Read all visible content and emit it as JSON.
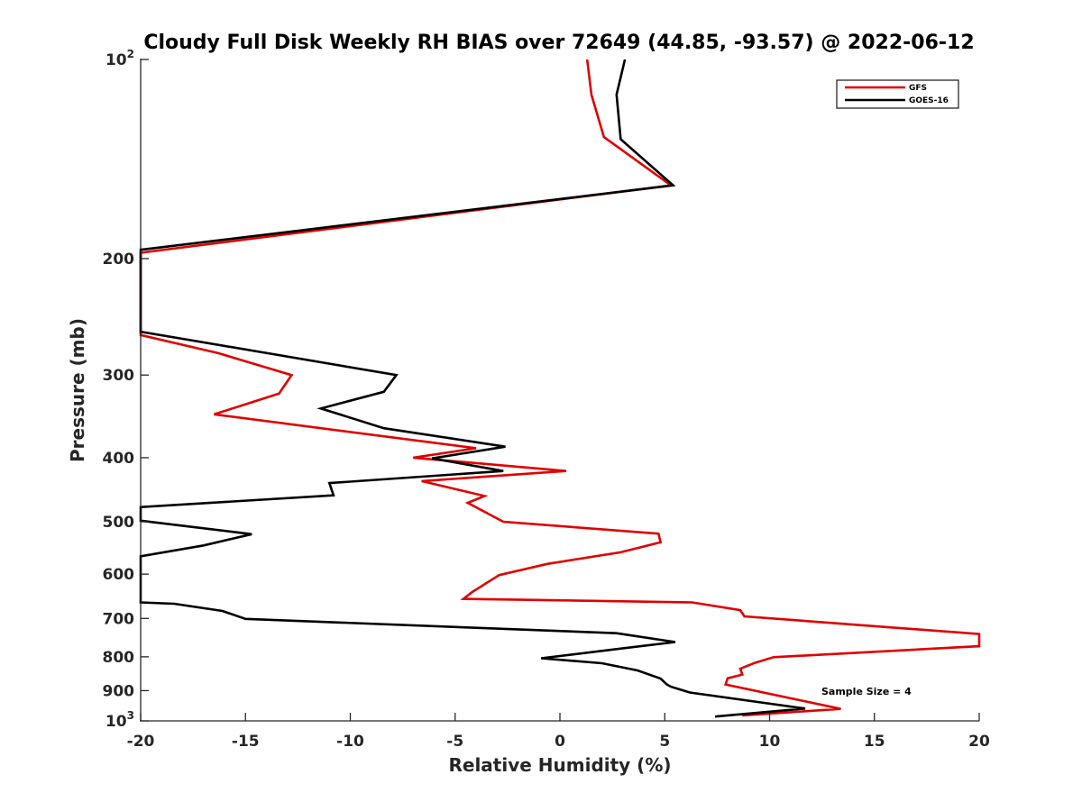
{
  "chart_data": {
    "type": "line",
    "title": "Cloudy Full Disk Weekly RH BIAS over 72649 (44.85, -93.57) @ 2022-06-12",
    "xlabel": "Relative Humidity (%)",
    "ylabel": "Pressure (mb)",
    "xlim": [
      -20,
      20
    ],
    "ylim": [
      100,
      1000
    ],
    "y_scale": "log",
    "y_reversed": true,
    "grid": false,
    "legend_position": "top-right",
    "x_ticks": [
      "-20",
      "-15",
      "-10",
      "-5",
      "0",
      "5",
      "10",
      "15",
      "20"
    ],
    "y_ticks": [
      {
        "value": 100,
        "base": "10",
        "exp": "2"
      },
      {
        "value": 200,
        "label": "200"
      },
      {
        "value": 300,
        "label": "300"
      },
      {
        "value": 400,
        "label": "400"
      },
      {
        "value": 500,
        "label": "500"
      },
      {
        "value": 600,
        "label": "600"
      },
      {
        "value": 700,
        "label": "700"
      },
      {
        "value": 800,
        "label": "800"
      },
      {
        "value": 900,
        "label": "900"
      },
      {
        "value": 1000,
        "base": "10",
        "exp": "3"
      }
    ],
    "annotation": "Sample Size = 4",
    "series": [
      {
        "name": "GFS",
        "color": "#e00000",
        "points": [
          [
            1.3,
            100
          ],
          [
            1.5,
            113
          ],
          [
            2.1,
            131
          ],
          [
            5.3,
            155
          ],
          [
            -20,
            196
          ],
          [
            -20,
            261
          ],
          [
            -16.3,
            278
          ],
          [
            -12.8,
            300
          ],
          [
            -13.4,
            320
          ],
          [
            -16.5,
            344
          ],
          [
            -4.0,
            387
          ],
          [
            -7.0,
            400
          ],
          [
            0.3,
            419
          ],
          [
            -6.6,
            434
          ],
          [
            -3.6,
            457
          ],
          [
            -4.4,
            468
          ],
          [
            -2.7,
            500
          ],
          [
            4.7,
            521
          ],
          [
            4.8,
            537
          ],
          [
            2.9,
            556
          ],
          [
            -0.6,
            579
          ],
          [
            -2.9,
            602
          ],
          [
            -4.2,
            639
          ],
          [
            -4.6,
            654
          ],
          [
            6.3,
            662
          ],
          [
            8.6,
            680
          ],
          [
            8.8,
            695
          ],
          [
            20,
            739
          ],
          [
            20,
            771
          ],
          [
            10.2,
            801
          ],
          [
            9.3,
            817
          ],
          [
            8.6,
            834
          ],
          [
            8.7,
            851
          ],
          [
            8.0,
            862
          ],
          [
            7.9,
            881
          ],
          [
            13.4,
            959
          ],
          [
            8.7,
            981
          ]
        ]
      },
      {
        "name": "GOES-16",
        "color": "#000000",
        "points": [
          [
            3.1,
            100
          ],
          [
            2.7,
            113
          ],
          [
            2.9,
            132
          ],
          [
            5.4,
            155
          ],
          [
            -20,
            194
          ],
          [
            -20,
            258
          ],
          [
            -7.8,
            300
          ],
          [
            -8.4,
            318
          ],
          [
            -11.4,
            337
          ],
          [
            -8.4,
            361
          ],
          [
            -2.6,
            385
          ],
          [
            -6.1,
            401
          ],
          [
            -2.7,
            419
          ],
          [
            -11.0,
            437
          ],
          [
            -10.8,
            456
          ],
          [
            -20,
            475
          ],
          [
            -20,
            498
          ],
          [
            -14.7,
            522
          ],
          [
            -17.0,
            543
          ],
          [
            -20,
            564
          ],
          [
            -20,
            662
          ],
          [
            -18.4,
            665
          ],
          [
            -16.1,
            682
          ],
          [
            -15.0,
            701
          ],
          [
            2.7,
            737
          ],
          [
            5.5,
            760
          ],
          [
            3.1,
            776
          ],
          [
            -0.9,
            804
          ],
          [
            2.0,
            818
          ],
          [
            3.7,
            839
          ],
          [
            4.8,
            863
          ],
          [
            5.1,
            881
          ],
          [
            5.3,
            888
          ],
          [
            6.2,
            906
          ],
          [
            11.7,
            958
          ],
          [
            7.4,
            985
          ]
        ]
      }
    ]
  }
}
